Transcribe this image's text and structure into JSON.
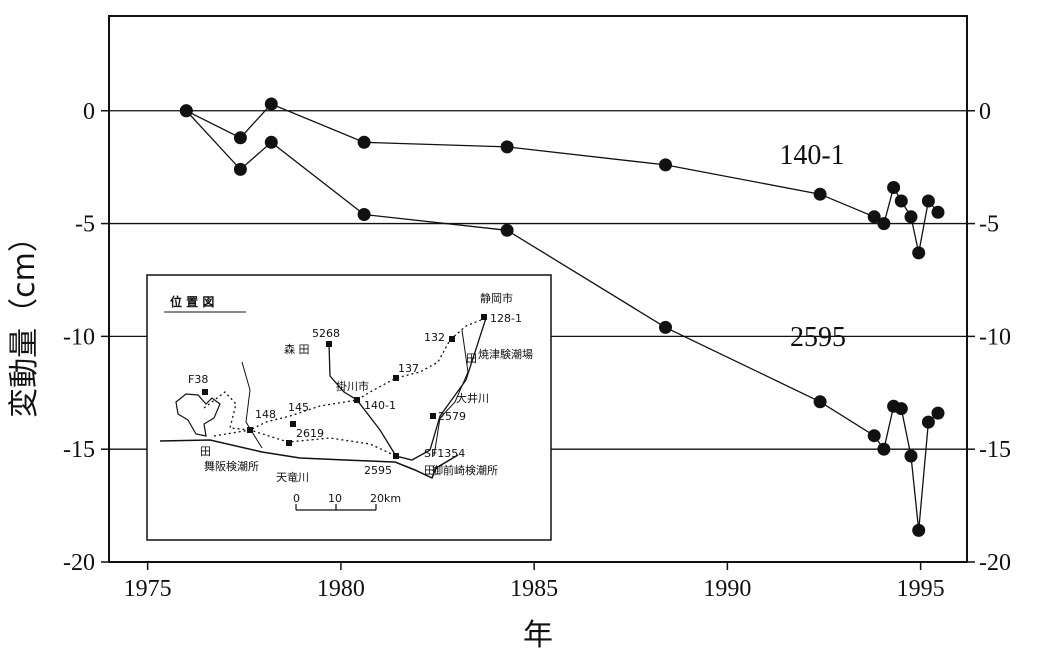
{
  "chart_data": {
    "type": "line",
    "title": "",
    "xlabel": "年",
    "ylabel": "変動量（cm）",
    "xlim": [
      1974,
      1996.2
    ],
    "ylim": [
      -20,
      4.2
    ],
    "x_ticks": [
      1975,
      1980,
      1985,
      1990,
      1995
    ],
    "y_ticks": [
      0,
      -5,
      -10,
      -15,
      -20
    ],
    "grid": "horizontal",
    "series": [
      {
        "name": "140-1",
        "x": [
          1976.0,
          1977.4,
          1978.2,
          1980.6,
          1984.3,
          1988.4,
          1992.4,
          1993.8,
          1994.05,
          1994.3,
          1994.5,
          1994.75,
          1994.95,
          1995.2,
          1995.45
        ],
        "y": [
          0,
          -1.2,
          0.3,
          -1.4,
          -1.6,
          -2.4,
          -3.7,
          -4.7,
          -5.0,
          -3.4,
          -4.0,
          -4.7,
          -6.3,
          -4.0,
          -4.5
        ]
      },
      {
        "name": "2595",
        "x": [
          1976.0,
          1977.4,
          1978.2,
          1980.6,
          1984.3,
          1988.4,
          1992.4,
          1993.8,
          1994.05,
          1994.3,
          1994.5,
          1994.75,
          1994.95,
          1995.2,
          1995.45
        ],
        "y": [
          0,
          -2.6,
          -1.4,
          -4.6,
          -5.3,
          -9.6,
          -12.9,
          -14.4,
          -15.0,
          -13.1,
          -13.2,
          -15.3,
          -18.6,
          -13.8,
          -13.4
        ]
      }
    ]
  },
  "inset_map": {
    "title": "位 置 図",
    "labels": [
      "静岡市",
      "128-1",
      "132",
      "焼津験潮場",
      "5268",
      "森 田",
      "137",
      "掛川市",
      "大井川",
      "140-1",
      "F38",
      "148",
      "145",
      "2579",
      "2619",
      "SF1354",
      "2595",
      "舞阪検潮所",
      "天竜川",
      "御前崎検潮所"
    ],
    "scale_labels": [
      "0",
      "10",
      "20km"
    ]
  }
}
